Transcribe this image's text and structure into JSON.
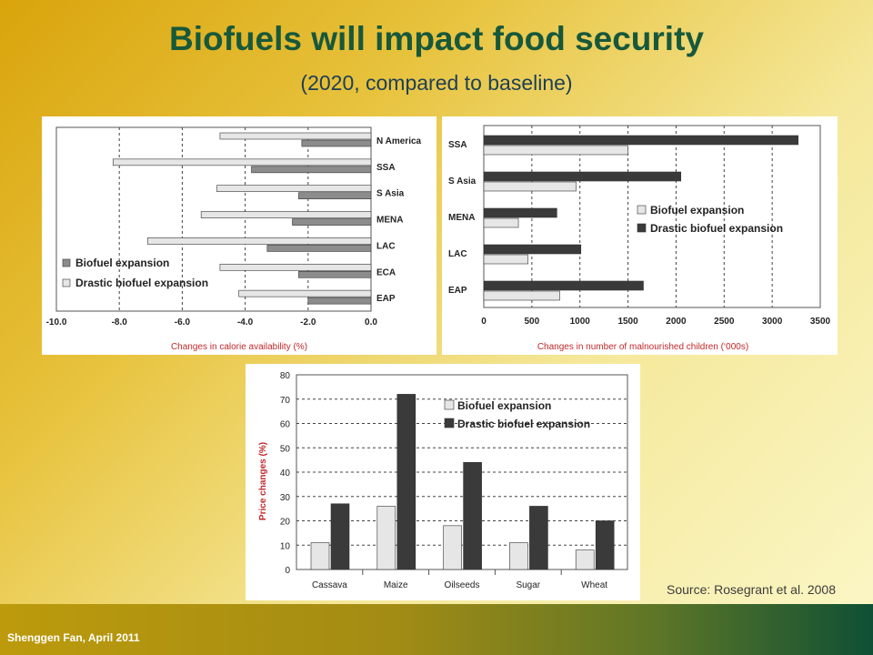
{
  "slide": {
    "title": "Biofuels will impact food security",
    "subtitle": "(2020, compared to baseline)",
    "source": "Source: Rosegrant  et al. 2008",
    "author": "Shenggen Fan, April 2011"
  },
  "colors": {
    "dark_bar": "#3a3a3a",
    "mid_bar": "#8c8c8c",
    "light_bar": "#e6e6e6",
    "axis_label_red": "#c0282b",
    "title_green": "#17583b"
  },
  "chart_data": [
    {
      "type": "bar",
      "orientation": "horizontal",
      "categories": [
        "N America",
        "SSA",
        "S Asia",
        "MENA",
        "LAC",
        "ECA",
        "EAP"
      ],
      "series": [
        {
          "name": "Drastic biofuel expansion",
          "values": [
            -4.8,
            -8.2,
            -4.9,
            -5.4,
            -7.1,
            -4.8,
            -4.2
          ],
          "color": "light"
        },
        {
          "name": "Biofuel expansion",
          "values": [
            -2.2,
            -3.8,
            -2.3,
            -2.5,
            -3.3,
            -2.3,
            -2.0
          ],
          "color": "mid"
        }
      ],
      "xlim": [
        -10,
        0
      ],
      "ticks": [
        "-10.0",
        "-8.0",
        "-6.0",
        "-4.0",
        "-2.0",
        "0.0"
      ],
      "xlabel": "Changes in calorie availability (%)",
      "legend": "bottom-left"
    },
    {
      "type": "bar",
      "orientation": "horizontal",
      "categories": [
        "SSA",
        "S Asia",
        "MENA",
        "LAC",
        "EAP"
      ],
      "series": [
        {
          "name": "Drastic biofuel expansion",
          "values": [
            3270,
            2050,
            760,
            1010,
            1660
          ],
          "color": "dark"
        },
        {
          "name": "Biofuel expansion",
          "values": [
            1500,
            960,
            360,
            460,
            790
          ],
          "color": "light"
        }
      ],
      "xlim": [
        0,
        3500
      ],
      "ticks": [
        "0",
        "500",
        "1000",
        "1500",
        "2000",
        "2500",
        "3000",
        "3500"
      ],
      "xlabel": "Changes in number of malnourished children (‘000s)",
      "legend": "middle-right"
    },
    {
      "type": "bar",
      "orientation": "vertical",
      "categories": [
        "Cassava",
        "Maize",
        "Oilseeds",
        "Sugar",
        "Wheat"
      ],
      "series": [
        {
          "name": "Biofuel expansion",
          "values": [
            11,
            26,
            18,
            11,
            8
          ],
          "color": "light"
        },
        {
          "name": "Drastic biofuel expansion",
          "values": [
            27,
            72,
            44,
            26,
            20
          ],
          "color": "dark"
        }
      ],
      "ylim": [
        0,
        80
      ],
      "ticks": [
        "0",
        "10",
        "20",
        "30",
        "40",
        "50",
        "60",
        "70",
        "80"
      ],
      "ylabel": "Price changes (%)",
      "legend": "top-center"
    }
  ]
}
